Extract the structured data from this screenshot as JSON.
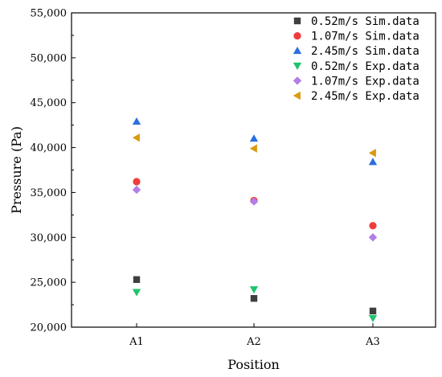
{
  "chart_data": {
    "type": "scatter",
    "xlabel": "Position",
    "ylabel": "Pressure (Pa)",
    "categories": [
      "A1",
      "A2",
      "A3"
    ],
    "ylim": [
      20000,
      55000
    ],
    "ytick_values": [
      20000,
      25000,
      30000,
      35000,
      40000,
      45000,
      50000,
      55000
    ],
    "ytick_labels": [
      "20,000",
      "25,000",
      "30,000",
      "35,000",
      "40,000",
      "45,000",
      "50,000",
      "55,000"
    ],
    "legend_position": "top-right",
    "grid": false,
    "series": [
      {
        "name": "0.52m/s Sim.data",
        "marker": "square",
        "color": "#3f3f3f",
        "values": [
          25300,
          23200,
          21800
        ]
      },
      {
        "name": "1.07m/s Sim.data",
        "marker": "circle",
        "color": "#f03c3c",
        "values": [
          36200,
          34100,
          31300
        ]
      },
      {
        "name": "2.45m/s Sim.data",
        "marker": "triangle-up",
        "color": "#2b6fe0",
        "values": [
          42900,
          41000,
          38400
        ]
      },
      {
        "name": "0.52m/s Exp.data",
        "marker": "triangle-down",
        "color": "#1ec46c",
        "values": [
          23900,
          24200,
          21000
        ]
      },
      {
        "name": "1.07m/s Exp.data",
        "marker": "diamond",
        "color": "#b27ee8",
        "values": [
          35300,
          34000,
          30000
        ]
      },
      {
        "name": "2.45m/s Exp.data",
        "marker": "triangle-left",
        "color": "#d99a0e",
        "values": [
          41100,
          39900,
          39400
        ]
      }
    ]
  }
}
